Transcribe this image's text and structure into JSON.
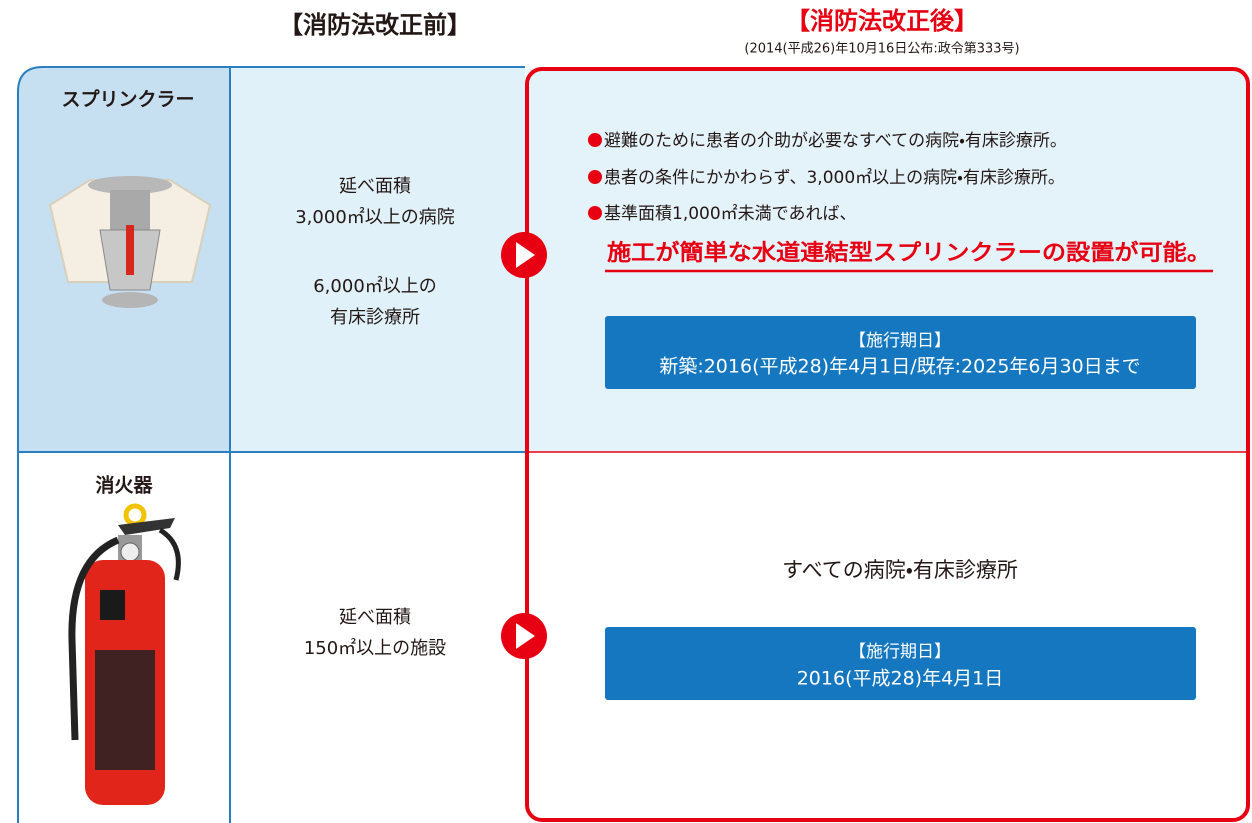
{
  "header": {
    "before": "【消防法改正前】",
    "after": "【消防法改正後】",
    "after_note": "(2014(平成26)年10月16日公布:政令第333号)"
  },
  "rows": [
    {
      "label": "スプリンクラー",
      "before": [
        "延べ面積",
        "3,000㎡以上の病院",
        "6,000㎡以上の",
        "有床診療所"
      ],
      "after": {
        "bullets": [
          "避難のために患者の介助が必要なすべての病院・有床診療所。",
          "患者の条件にかかわらず、3,000㎡以上の病院・有床診療所。",
          "基準面積1,000㎡未満であれば、"
        ],
        "highlight": "施工が簡単な水道連結型スプリンクラーの設置が可能。",
        "date_title": "【施行期日】",
        "date": "新築:2016(平成28)年4月1日/既存:2025年6月30日まで"
      }
    },
    {
      "label": "消火器",
      "before": [
        "延べ面積",
        "150㎡以上の施設"
      ],
      "after": {
        "text": "すべての病院・有床診療所",
        "date_title": "【施行期日】",
        "date": "2016(平成28)年4月1日"
      }
    }
  ]
}
